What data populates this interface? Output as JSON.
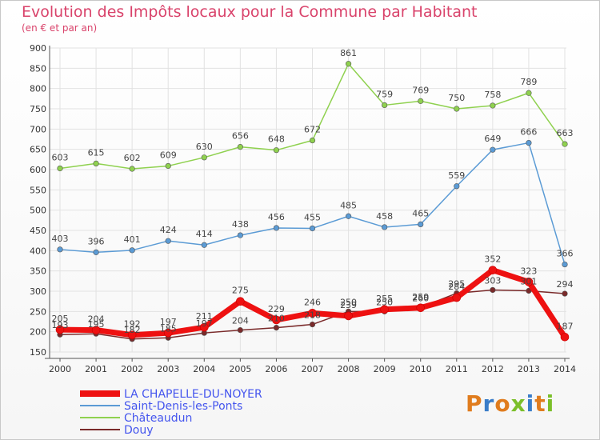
{
  "title": "Evolution des Impôts locaux pour la Commune par Habitant",
  "subtitle": "(en € et par an)",
  "logo": {
    "letters": [
      "P",
      "r",
      "o",
      "x",
      "i",
      "t",
      "i"
    ],
    "colors": [
      "#e07c1e",
      "#3a7dc9",
      "#e07c1e",
      "#7bbf2a",
      "#3a7dc9",
      "#e07c1e",
      "#7bbf2a"
    ]
  },
  "chart_data": {
    "type": "line",
    "title": "Evolution des Impôts locaux pour la Commune par Habitant",
    "subtitle": "(en € et par an)",
    "x": [
      "2000",
      "2001",
      "2002",
      "2003",
      "2004",
      "2005",
      "2006",
      "2007",
      "2008",
      "2009",
      "2010",
      "2011",
      "2012",
      "2013",
      "2014"
    ],
    "ylim": [
      150,
      900
    ],
    "yticks": [
      "150",
      "200",
      "250",
      "300",
      "350",
      "400",
      "450",
      "500",
      "550",
      "600",
      "650",
      "700",
      "750",
      "800",
      "850",
      "900"
    ],
    "grid": true,
    "legend_placement": "bottom-left",
    "series": [
      {
        "name": "Douy",
        "color": "#7a2a2a",
        "values": [
          193,
          195,
          182,
          185,
          197,
          204,
          210,
          218,
          250,
          250,
          260,
          295,
          303,
          301,
          294
        ],
        "labels": [
          "193",
          "195",
          "182",
          "185",
          "197",
          "204",
          "210",
          "218",
          "250",
          "250",
          "260",
          "295",
          "303",
          "301",
          "294"
        ]
      },
      {
        "name": "Saint-Denis-les-Ponts",
        "color": "#5b9bd5",
        "values": [
          403,
          396,
          401,
          424,
          414,
          438,
          456,
          455,
          485,
          458,
          465,
          559,
          649,
          666,
          366
        ],
        "labels": [
          "403",
          "396",
          "401",
          "424",
          "414",
          "438",
          "456",
          "455",
          "485",
          "458",
          "465",
          "559",
          "649",
          "666",
          "366"
        ]
      },
      {
        "name": "Châteaudun",
        "color": "#8fd14f",
        "values": [
          603,
          615,
          602,
          609,
          630,
          656,
          648,
          672,
          861,
          759,
          769,
          750,
          758,
          789,
          663
        ],
        "labels": [
          "603",
          "615",
          "602",
          "609",
          "630",
          "656",
          "648",
          "672",
          "861",
          "759",
          "769",
          "750",
          "758",
          "789",
          "663"
        ]
      },
      {
        "name": "LA CHAPELLE-DU-NOYER",
        "color": "#ee1111",
        "values": [
          205,
          204,
          192,
          197,
          211,
          275,
          229,
          246,
          239,
          255,
          259,
          284,
          352,
          323,
          187
        ],
        "labels": [
          "205",
          "204",
          "192",
          "197",
          "211",
          "275",
          "229",
          "246",
          "239",
          "255",
          "259",
          "284",
          "352",
          "323",
          "187"
        ]
      }
    ],
    "legend": [
      {
        "name": "LA CHAPELLE-DU-NOYER",
        "color": "#ee1111",
        "text_color": "#4455ee"
      },
      {
        "name": "Saint-Denis-les-Ponts",
        "color": "#5b9bd5",
        "text_color": "#4455ee"
      },
      {
        "name": "Châteaudun",
        "color": "#8fd14f",
        "text_color": "#4455ee"
      },
      {
        "name": "Douy",
        "color": "#7a2a2a",
        "text_color": "#4455ee"
      }
    ]
  }
}
